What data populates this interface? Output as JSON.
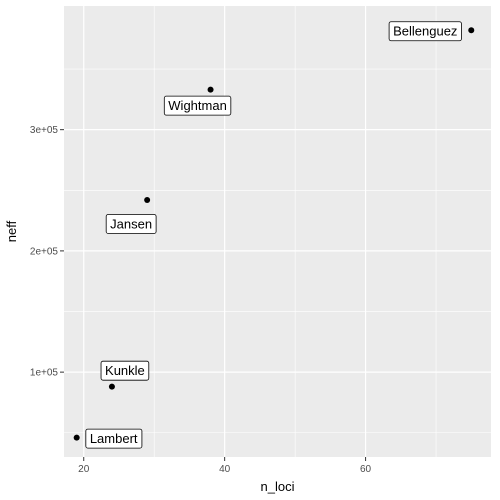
{
  "chart_data": {
    "type": "scatter",
    "title": "",
    "xlabel": "n_loci",
    "ylabel": "neff",
    "xlim": [
      17.2,
      77.8
    ],
    "ylim": [
      30000,
      402000
    ],
    "grid": true,
    "legend": "none",
    "x_ticks": [
      {
        "value": 20,
        "label": "20"
      },
      {
        "value": 40,
        "label": "40"
      },
      {
        "value": 60,
        "label": "60"
      }
    ],
    "y_ticks": [
      {
        "value": 100000,
        "label": "1e+05"
      },
      {
        "value": 200000,
        "label": "2e+05"
      },
      {
        "value": 300000,
        "label": "3e+05"
      }
    ],
    "points": [
      {
        "name": "Bellenguez",
        "x": 75,
        "y": 382000
      },
      {
        "name": "Wightman",
        "x": 38,
        "y": 333000
      },
      {
        "name": "Jansen",
        "x": 29,
        "y": 242000
      },
      {
        "name": "Kunkle",
        "x": 24,
        "y": 88000
      },
      {
        "name": "Lambert",
        "x": 19,
        "y": 46000
      }
    ],
    "colors": {
      "panel": "#ebebeb",
      "grid_major": "#ffffff",
      "point": "#000000",
      "label_fill": "#ffffff",
      "label_border": "#000000"
    }
  }
}
